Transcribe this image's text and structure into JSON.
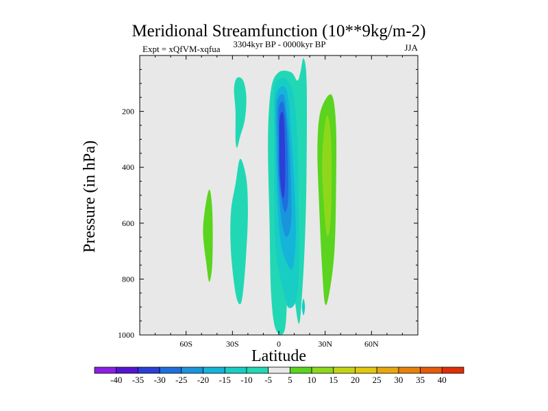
{
  "chart_data": {
    "type": "contour",
    "title": "Meridional Streamfunction (10**9kg/m-2)",
    "subtitle_left": "Expt = xQfVM-xqfua",
    "subtitle_center": "3304kyr BP - 0000kyr BP",
    "subtitle_right": "JJA",
    "xlabel": "Latitude",
    "ylabel": "Pressure (in hPa)",
    "xlim": [
      -90,
      90
    ],
    "ylim": [
      0,
      1000
    ],
    "y_inverted": true,
    "x_ticks": [
      {
        "value": -60,
        "label": "60S"
      },
      {
        "value": -30,
        "label": "30S"
      },
      {
        "value": 0,
        "label": "0"
      },
      {
        "value": 30,
        "label": "30N"
      },
      {
        "value": 60,
        "label": "60N"
      }
    ],
    "y_ticks": [
      200,
      400,
      600,
      800,
      1000
    ],
    "colorbar": {
      "levels": [
        "-40",
        "-35",
        "-30",
        "-25",
        "-20",
        "-15",
        "-10",
        "-5",
        "5",
        "10",
        "15",
        "20",
        "25",
        "30",
        "35",
        "40"
      ],
      "colors": [
        "#8c1ee6",
        "#5514d2",
        "#2b3ed6",
        "#1f6ee0",
        "#1a95dc",
        "#14b5d8",
        "#18cdc4",
        "#22d8b4",
        "#e8e8e8",
        "#5ad41e",
        "#8ed81c",
        "#c4d414",
        "#e2c80e",
        "#e6a80c",
        "#e6820a",
        "#e65a0a",
        "#e02e08"
      ]
    },
    "regions": [
      {
        "name": "minus5-band-sh-mid",
        "level": "-5",
        "points": [
          [
            -27,
            80
          ],
          [
            -23,
            90
          ],
          [
            -21,
            150
          ],
          [
            -22,
            230
          ],
          [
            -25,
            290
          ],
          [
            -27,
            330
          ],
          [
            -28,
            300
          ],
          [
            -28,
            200
          ],
          [
            -29,
            120
          ]
        ]
      },
      {
        "name": "minus5-band-sh-low",
        "level": "-5",
        "points": [
          [
            -25,
            370
          ],
          [
            -21,
            440
          ],
          [
            -20,
            560
          ],
          [
            -21,
            700
          ],
          [
            -23,
            840
          ],
          [
            -25,
            890
          ],
          [
            -28,
            850
          ],
          [
            -31,
            700
          ],
          [
            -31,
            560
          ],
          [
            -28,
            460
          ]
        ]
      },
      {
        "name": "minus5-main-cell",
        "level": "-5",
        "points": [
          [
            -5,
            120
          ],
          [
            0,
            60
          ],
          [
            8,
            60
          ],
          [
            12,
            90
          ],
          [
            14,
            60
          ],
          [
            16,
            10
          ],
          [
            18,
            90
          ],
          [
            18,
            400
          ],
          [
            17,
            650
          ],
          [
            15,
            860
          ],
          [
            13,
            960
          ],
          [
            10,
            860
          ],
          [
            8,
            780
          ],
          [
            6,
            800
          ],
          [
            4,
            980
          ],
          [
            -2,
            980
          ],
          [
            -5,
            850
          ],
          [
            -6,
            600
          ],
          [
            -7,
            300
          ]
        ]
      },
      {
        "name": "minus10-main",
        "level": "-10",
        "points": [
          [
            -3,
            120
          ],
          [
            2,
            80
          ],
          [
            7,
            100
          ],
          [
            10,
            160
          ],
          [
            12,
            300
          ],
          [
            13,
            560
          ],
          [
            13,
            780
          ],
          [
            11,
            880
          ],
          [
            6,
            900
          ],
          [
            2,
            820
          ],
          [
            -2,
            700
          ],
          [
            -3,
            500
          ],
          [
            -3,
            300
          ]
        ]
      },
      {
        "name": "minus15-main",
        "level": "-15",
        "points": [
          [
            -2,
            150
          ],
          [
            3,
            110
          ],
          [
            6,
            150
          ],
          [
            8,
            280
          ],
          [
            10,
            460
          ],
          [
            11,
            640
          ],
          [
            9,
            760
          ],
          [
            5,
            740
          ],
          [
            1,
            660
          ],
          [
            -1,
            500
          ],
          [
            -2,
            320
          ]
        ]
      },
      {
        "name": "minus20-main",
        "level": "-20",
        "points": [
          [
            -1,
            170
          ],
          [
            3,
            140
          ],
          [
            5,
            200
          ],
          [
            7,
            330
          ],
          [
            8,
            480
          ],
          [
            8,
            600
          ],
          [
            5,
            650
          ],
          [
            2,
            600
          ],
          [
            0,
            480
          ],
          [
            -1,
            320
          ]
        ]
      },
      {
        "name": "minus25-main",
        "level": "-25",
        "points": [
          [
            0,
            190
          ],
          [
            3,
            170
          ],
          [
            5,
            260
          ],
          [
            6,
            380
          ],
          [
            6,
            520
          ],
          [
            4,
            560
          ],
          [
            2,
            520
          ],
          [
            0,
            420
          ],
          [
            0,
            300
          ]
        ]
      },
      {
        "name": "minus30-main",
        "level": "-30",
        "points": [
          [
            0.5,
            230
          ],
          [
            3,
            210
          ],
          [
            4,
            330
          ],
          [
            4,
            460
          ],
          [
            3,
            510
          ],
          [
            1.5,
            480
          ],
          [
            0.5,
            380
          ]
        ]
      },
      {
        "name": "minus10-spot-low",
        "level": "-10",
        "points": [
          [
            16,
            870
          ],
          [
            17,
            900
          ],
          [
            16,
            930
          ],
          [
            15,
            900
          ]
        ]
      },
      {
        "name": "plus5-band-nh",
        "level": "5",
        "points": [
          [
            27,
            200
          ],
          [
            34,
            140
          ],
          [
            37,
            250
          ],
          [
            37,
            500
          ],
          [
            36,
            700
          ],
          [
            33,
            840
          ],
          [
            30,
            890
          ],
          [
            28,
            760
          ],
          [
            26,
            520
          ],
          [
            25,
            330
          ]
        ]
      },
      {
        "name": "plus10-core-nh",
        "level": "10",
        "points": [
          [
            30,
            240
          ],
          [
            32,
            220
          ],
          [
            34,
            320
          ],
          [
            34,
            520
          ],
          [
            33,
            620
          ],
          [
            31,
            640
          ],
          [
            29,
            520
          ],
          [
            28,
            380
          ]
        ]
      },
      {
        "name": "plus5-band-sh",
        "level": "5",
        "points": [
          [
            -48,
            560
          ],
          [
            -45,
            480
          ],
          [
            -43,
            560
          ],
          [
            -43,
            740
          ],
          [
            -45,
            810
          ],
          [
            -47,
            740
          ],
          [
            -49,
            640
          ]
        ]
      }
    ]
  }
}
